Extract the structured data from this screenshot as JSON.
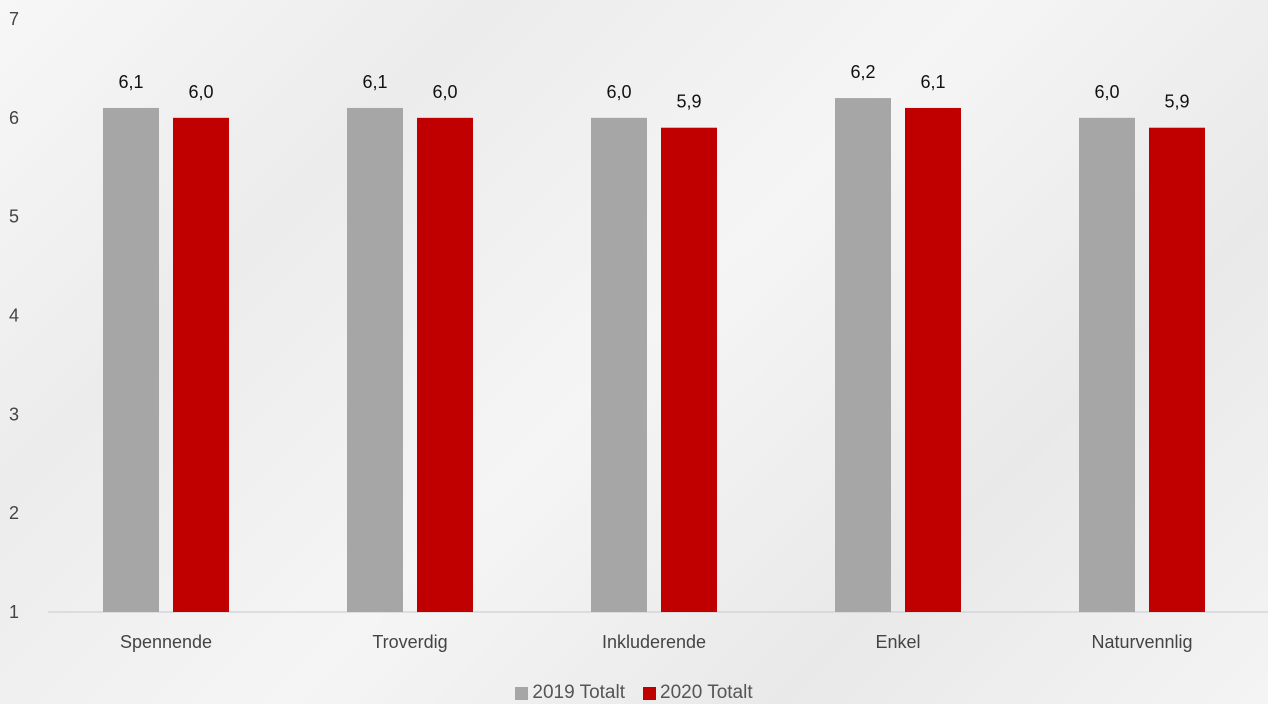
{
  "chart_data": {
    "type": "bar",
    "categories": [
      "Spennende",
      "Troverdig",
      "Inkluderende",
      "Enkel",
      "Naturvennlig"
    ],
    "series": [
      {
        "name": "2019 Totalt",
        "values": [
          6.1,
          6.1,
          6.0,
          6.2,
          6.0
        ],
        "labels": [
          "6,1",
          "6,1",
          "6,0",
          "6,2",
          "6,0"
        ],
        "color": "#a6a6a6"
      },
      {
        "name": "2020 Totalt",
        "values": [
          6.0,
          6.0,
          5.9,
          6.1,
          5.9
        ],
        "labels": [
          "6,0",
          "6,0",
          "5,9",
          "6,1",
          "5,9"
        ],
        "color": "#c00000"
      }
    ],
    "yticks": [
      "1",
      "2",
      "3",
      "4",
      "5",
      "6",
      "7"
    ],
    "ylim": [
      1,
      7
    ],
    "grid": false,
    "legend_position": "bottom"
  }
}
